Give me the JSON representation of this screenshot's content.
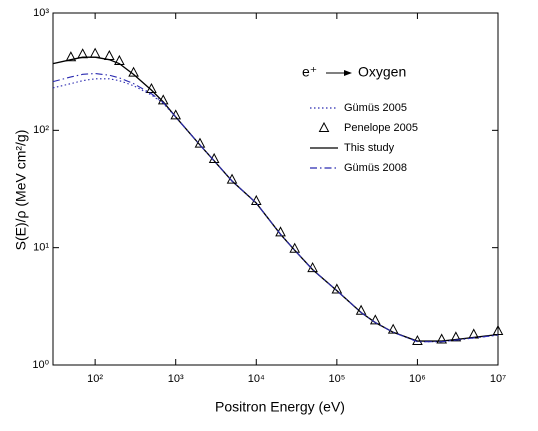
{
  "chart_data": {
    "type": "line",
    "xlabel": "Positron Energy (eV)",
    "ylabel": "S(E)/ρ (MeV cm²/g)",
    "annotations": [
      "e⁺",
      "Oxygen"
    ],
    "xscale": "log",
    "yscale": "log",
    "xlim": [
      30,
      10000000
    ],
    "ylim": [
      1,
      1000
    ],
    "xticks": [
      {
        "value": 100,
        "label": "10²"
      },
      {
        "value": 1000,
        "label": "10³"
      },
      {
        "value": 10000,
        "label": "10⁴"
      },
      {
        "value": 100000,
        "label": "10⁵"
      },
      {
        "value": 1000000,
        "label": "10⁶"
      },
      {
        "value": 10000000,
        "label": "10⁷"
      }
    ],
    "yticks": [
      {
        "value": 1,
        "label": "10⁰"
      },
      {
        "value": 10,
        "label": "10¹"
      },
      {
        "value": 100,
        "label": "10²"
      },
      {
        "value": 1000,
        "label": "10³"
      }
    ],
    "legend": "upper right",
    "x": [
      30,
      50,
      70,
      100,
      150,
      200,
      300,
      500,
      700,
      1000,
      2000,
      3000,
      5000,
      10000,
      20000,
      30000,
      50000,
      100000,
      200000,
      300000,
      500000,
      1000000,
      2000000,
      3000000,
      5000000,
      10000000
    ],
    "series": [
      {
        "name": "Gümüs 2005",
        "color": "#2a2ab0",
        "style": "dotted",
        "values": [
          230,
          250,
          265,
          275,
          275,
          265,
          240,
          200,
          170,
          130,
          75,
          55,
          37,
          24,
          13,
          9.5,
          6.5,
          4.3,
          2.8,
          2.3,
          1.9,
          1.58,
          1.58,
          1.63,
          1.7,
          1.8
        ]
      },
      {
        "name": "Penelope 2005",
        "color": "#000000",
        "style": "triangle",
        "values": [
          null,
          420,
          445,
          450,
          430,
          390,
          310,
          225,
          180,
          134,
          77,
          57,
          38,
          25,
          13.5,
          9.8,
          6.7,
          4.4,
          2.9,
          2.4,
          2.0,
          1.6,
          1.65,
          1.72,
          1.82,
          1.95
        ]
      },
      {
        "name": "This study",
        "color": "#000000",
        "style": "solid",
        "values": [
          370,
          400,
          420,
          420,
          400,
          370,
          300,
          220,
          175,
          130,
          75,
          55,
          37,
          24,
          13,
          9.5,
          6.5,
          4.3,
          2.8,
          2.3,
          1.9,
          1.6,
          1.6,
          1.65,
          1.72,
          1.82
        ]
      },
      {
        "name": "Gümüs 2008",
        "color": "#2a2ab0",
        "style": "dashdot",
        "values": [
          260,
          285,
          300,
          305,
          295,
          280,
          250,
          205,
          172,
          130,
          75,
          55,
          37,
          24,
          13,
          9.5,
          6.5,
          4.3,
          2.8,
          2.3,
          1.9,
          1.58,
          1.58,
          1.63,
          1.7,
          1.8
        ]
      }
    ]
  }
}
